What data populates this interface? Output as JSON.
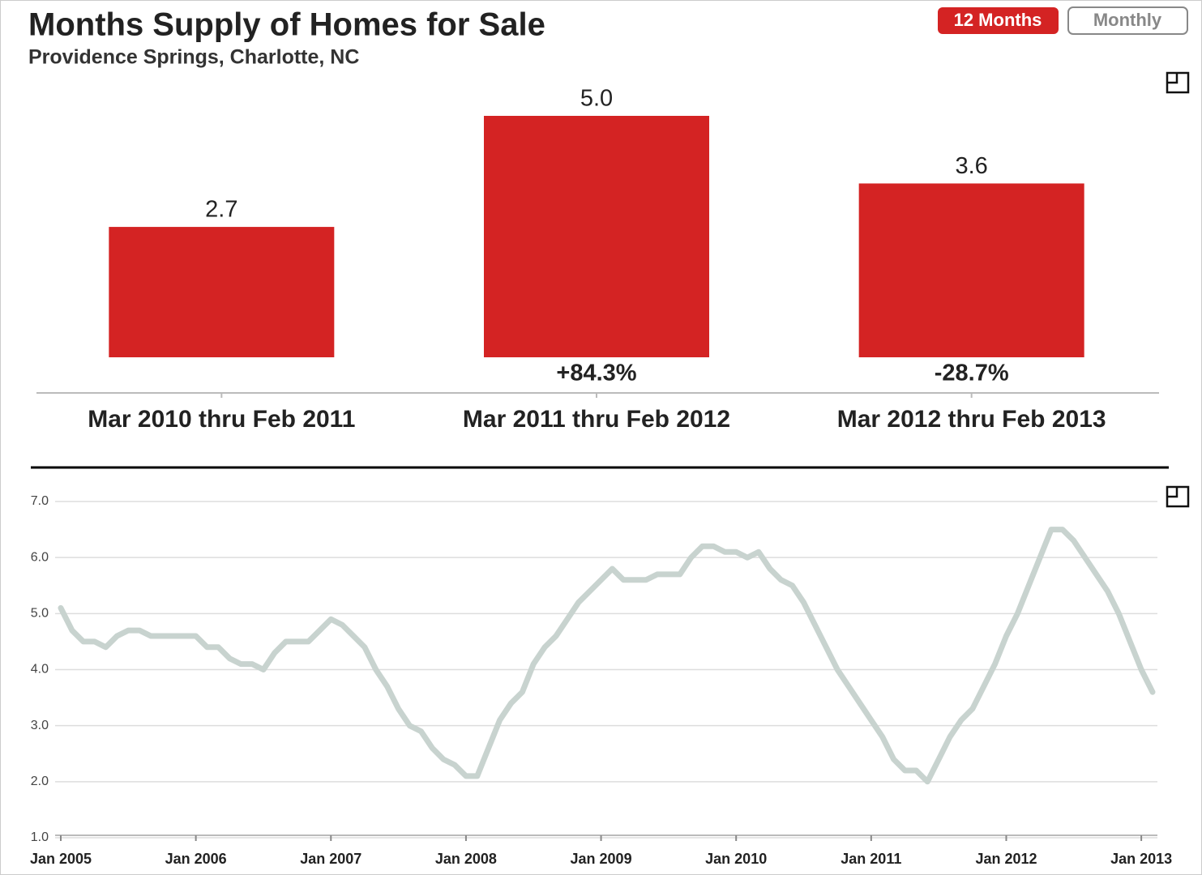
{
  "header": {
    "title": "Months Supply of Homes for Sale",
    "subtitle": "Providence Springs, Charlotte, NC"
  },
  "buttons": [
    "12 Months",
    "Monthly"
  ],
  "chart_data": [
    {
      "type": "bar",
      "categories": [
        "Mar 2010 thru Feb 2011",
        "Mar 2011 thru Feb 2012",
        "Mar 2012 thru Feb 2013"
      ],
      "values": [
        2.7,
        5.0,
        3.6
      ],
      "value_labels": [
        "2.7",
        "5.0",
        "3.6"
      ],
      "changes": [
        null,
        "+84.3%",
        "-28.7%"
      ],
      "color": "#d42323"
    },
    {
      "type": "line",
      "categories": [
        "Jan 2005",
        null,
        null,
        null,
        null,
        null,
        null,
        null,
        null,
        null,
        null,
        null,
        "Jan 2006",
        null,
        null,
        null,
        null,
        null,
        null,
        null,
        null,
        null,
        null,
        null,
        "Jan 2007",
        null,
        null,
        null,
        null,
        null,
        null,
        null,
        null,
        null,
        null,
        null,
        "Jan 2008",
        null,
        null,
        null,
        null,
        null,
        null,
        null,
        null,
        null,
        null,
        null,
        "Jan 2009",
        null,
        null,
        null,
        null,
        null,
        null,
        null,
        null,
        null,
        null,
        null,
        "Jan 2010",
        null,
        null,
        null,
        null,
        null,
        null,
        null,
        null,
        null,
        null,
        null,
        "Jan 2011",
        null,
        null,
        null,
        null,
        null,
        null,
        null,
        null,
        null,
        null,
        null,
        "Jan 2012",
        null,
        null,
        null,
        null,
        null,
        null,
        null,
        null,
        null,
        null,
        null,
        "Jan 2013",
        null
      ],
      "values": [
        5.1,
        4.7,
        4.5,
        4.5,
        4.4,
        4.6,
        4.7,
        4.7,
        4.6,
        4.6,
        4.6,
        4.6,
        4.6,
        4.4,
        4.4,
        4.2,
        4.1,
        4.1,
        4.0,
        4.3,
        4.5,
        4.5,
        4.5,
        4.7,
        4.9,
        4.8,
        4.6,
        4.4,
        4.0,
        3.7,
        3.3,
        3.0,
        2.9,
        2.6,
        2.4,
        2.3,
        2.1,
        2.1,
        2.6,
        3.1,
        3.4,
        3.6,
        4.1,
        4.4,
        4.6,
        4.9,
        5.2,
        5.4,
        5.6,
        5.8,
        5.6,
        5.6,
        5.6,
        5.7,
        5.7,
        5.7,
        6.0,
        6.2,
        6.2,
        6.1,
        6.1,
        6.0,
        6.1,
        5.8,
        5.6,
        5.5,
        5.2,
        4.8,
        4.4,
        4.0,
        3.7,
        3.4,
        3.1,
        2.8,
        2.4,
        2.2,
        2.2,
        2.0,
        2.4,
        2.8,
        3.1,
        3.3,
        3.7,
        4.1,
        4.6,
        5.0,
        5.5,
        6.0,
        6.5,
        6.5,
        6.3,
        6.0,
        5.7,
        5.4,
        5.0,
        4.5,
        4.0,
        3.6
      ],
      "color": "#c8d3cf",
      "ylim": [
        1,
        7
      ],
      "yticks": [
        {
          "value": 1,
          "label": "1.0"
        },
        {
          "value": 2,
          "label": "2.0"
        },
        {
          "value": 3,
          "label": "3.0"
        },
        {
          "value": 4,
          "label": "4.0"
        },
        {
          "value": 5,
          "label": "5.0"
        },
        {
          "value": 6,
          "label": "6.0"
        },
        {
          "value": 7,
          "label": "7.0"
        }
      ],
      "grid": true
    }
  ]
}
